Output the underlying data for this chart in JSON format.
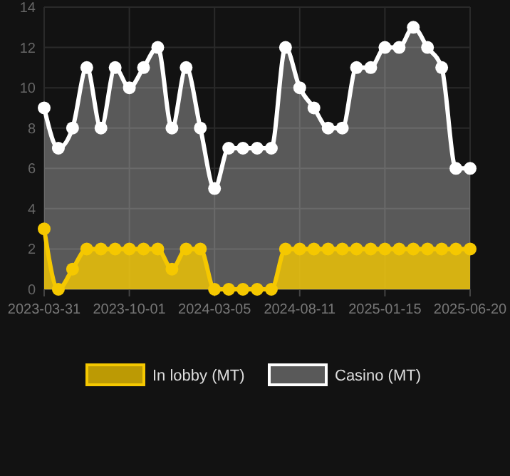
{
  "chart_data": {
    "type": "area",
    "categories": [
      "2023-03-31",
      null,
      null,
      null,
      null,
      null,
      "2023-10-01",
      null,
      null,
      null,
      null,
      null,
      "2024-03-05",
      null,
      null,
      null,
      null,
      null,
      "2024-08-11",
      null,
      null,
      null,
      null,
      null,
      "2025-01-15",
      null,
      null,
      null,
      null,
      null,
      "2025-06-20"
    ],
    "series": [
      {
        "name": "In lobby (MT)",
        "color": "#f5c800",
        "values": [
          3,
          0,
          1,
          2,
          2,
          2,
          2,
          2,
          2,
          1,
          2,
          2,
          0,
          0,
          0,
          0,
          0,
          2,
          2,
          2,
          2,
          2,
          2,
          2,
          2,
          2,
          2,
          2,
          2,
          2,
          2
        ]
      },
      {
        "name": "Casino (MT)",
        "color": "#ffffff",
        "values": [
          9,
          7,
          8,
          11,
          8,
          11,
          10,
          11,
          12,
          8,
          11,
          8,
          5,
          7,
          7,
          7,
          7,
          12,
          10,
          9,
          8,
          8,
          11,
          11,
          12,
          12,
          13,
          12,
          11,
          6,
          6
        ]
      }
    ],
    "ylim": [
      0,
      14
    ],
    "yticks": [
      0,
      2,
      4,
      6,
      8,
      10,
      12,
      14
    ],
    "grid": true,
    "legend": "bottom",
    "marker": "circle",
    "line_style": "solid"
  }
}
